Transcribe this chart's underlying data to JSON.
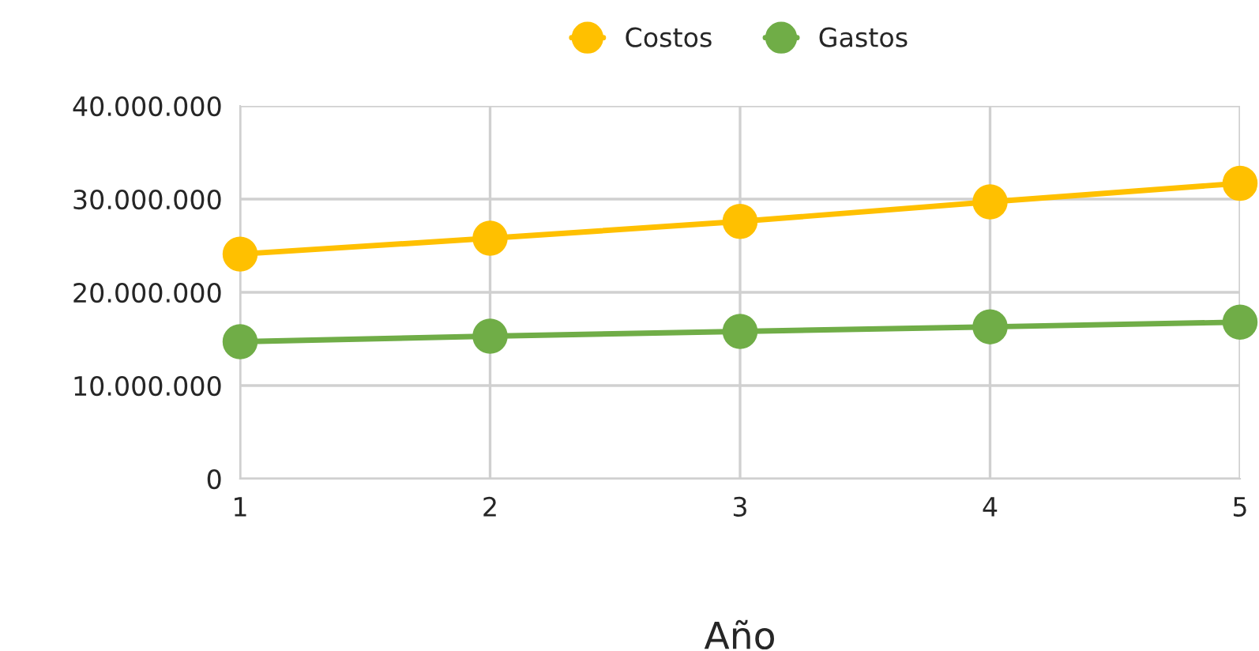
{
  "chart_data": {
    "type": "line",
    "xlabel": "Año",
    "categories": [
      "1",
      "2",
      "3",
      "4",
      "5"
    ],
    "series": [
      {
        "name": "Costos",
        "color": "#ffc000",
        "values": [
          24100000.0,
          25800000.0,
          27600000.0,
          29700000.0,
          31700000.0
        ]
      },
      {
        "name": "Gastos",
        "color": "#70ad47",
        "values": [
          14700000.0,
          15300000.0,
          15800000.0,
          16300000.0,
          16800000.0
        ]
      }
    ],
    "ylim": [
      0,
      40000000
    ],
    "yticks": [
      {
        "value": 0,
        "label": "0"
      },
      {
        "value": 10000000,
        "label": "10.000.000"
      },
      {
        "value": 20000000,
        "label": "20.000.000"
      },
      {
        "value": 30000000,
        "label": "30.000.000"
      },
      {
        "value": 40000000,
        "label": "40.000.000"
      }
    ],
    "grid": true,
    "legend": "top",
    "marker": "circle",
    "line_style": "solid"
  }
}
